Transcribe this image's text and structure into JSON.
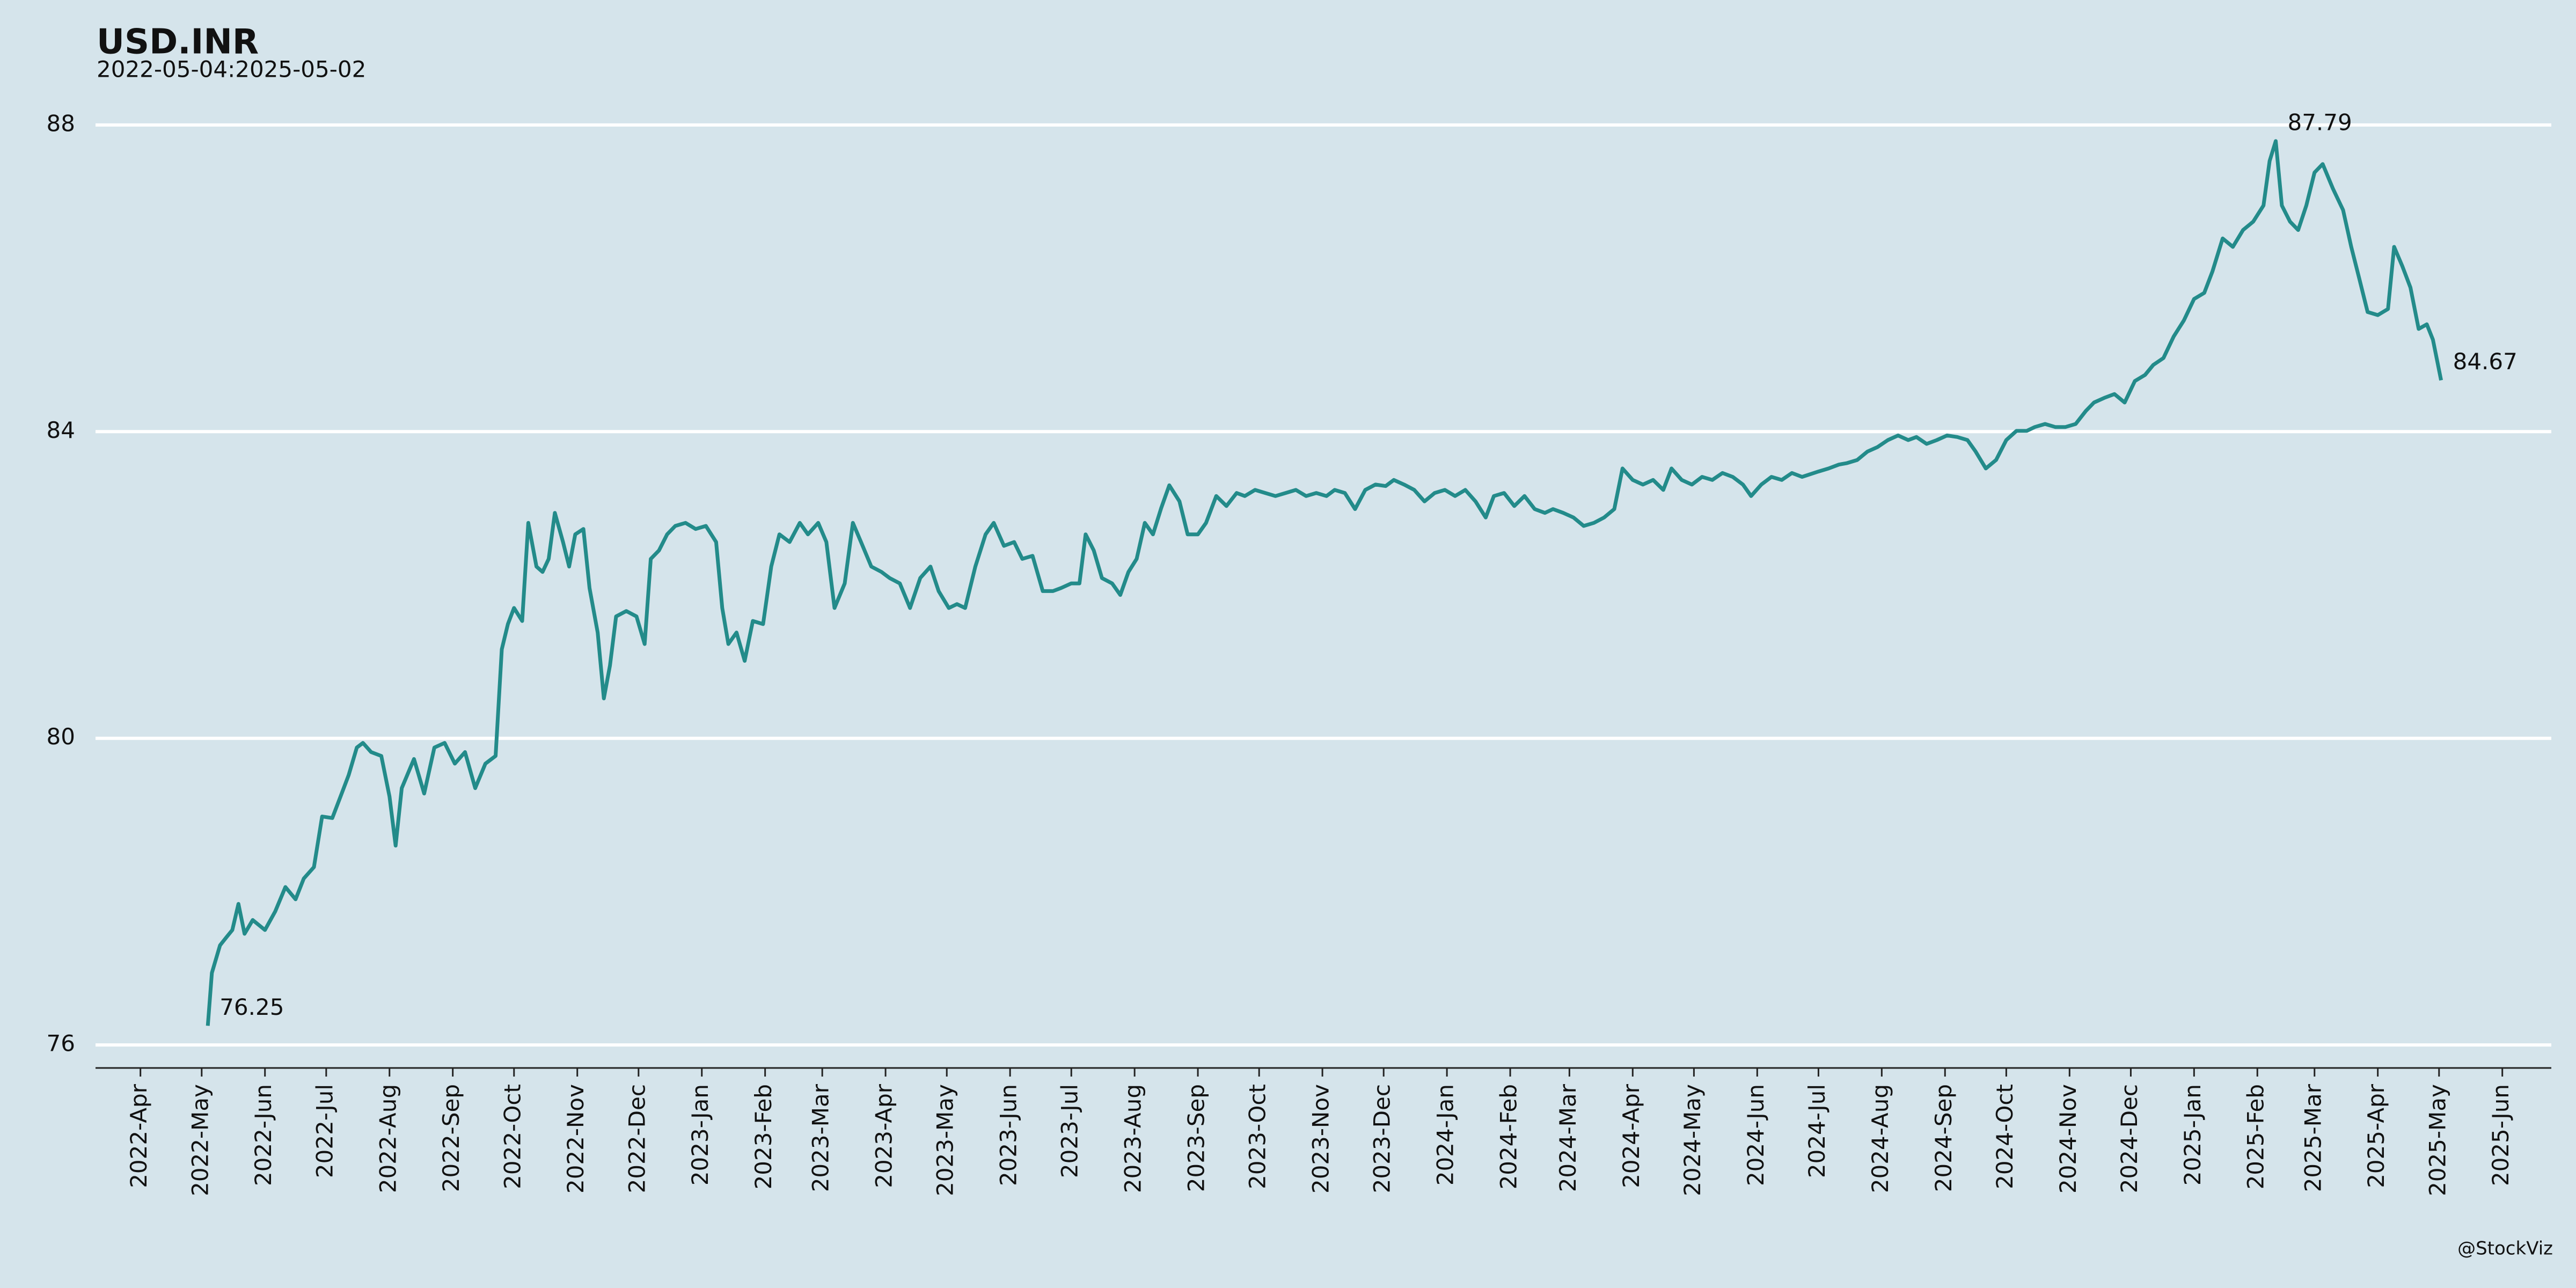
{
  "chart_data": {
    "type": "line",
    "title": "USD.INR",
    "subtitle": "2022-05-04:2025-05-02",
    "caption": "@StockViz",
    "x": [
      "2022-05-04",
      "2022-05-06",
      "2022-05-10",
      "2022-05-13",
      "2022-05-16",
      "2022-05-19",
      "2022-05-22",
      "2022-05-26",
      "2022-06-01",
      "2022-06-06",
      "2022-06-11",
      "2022-06-16",
      "2022-06-20",
      "2022-06-25",
      "2022-06-29",
      "2022-07-04",
      "2022-07-08",
      "2022-07-12",
      "2022-07-16",
      "2022-07-19",
      "2022-07-23",
      "2022-07-28",
      "2022-08-01",
      "2022-08-04",
      "2022-08-07",
      "2022-08-13",
      "2022-08-18",
      "2022-08-23",
      "2022-08-28",
      "2022-09-02",
      "2022-09-07",
      "2022-09-12",
      "2022-09-17",
      "2022-09-22",
      "2022-09-25",
      "2022-09-28",
      "2022-10-01",
      "2022-10-05",
      "2022-10-08",
      "2022-10-12",
      "2022-10-15",
      "2022-10-18",
      "2022-10-21",
      "2022-10-25",
      "2022-10-28",
      "2022-10-31",
      "2022-11-04",
      "2022-11-07",
      "2022-11-11",
      "2022-11-14",
      "2022-11-17",
      "2022-11-20",
      "2022-11-25",
      "2022-11-30",
      "2022-12-04",
      "2022-12-07",
      "2022-12-11",
      "2022-12-15",
      "2022-12-19",
      "2022-12-24",
      "2022-12-29",
      "2023-01-03",
      "2023-01-08",
      "2023-01-11",
      "2023-01-14",
      "2023-01-18",
      "2023-01-22",
      "2023-01-26",
      "2023-01-31",
      "2023-02-04",
      "2023-02-08",
      "2023-02-13",
      "2023-02-18",
      "2023-02-22",
      "2023-02-27",
      "2023-03-03",
      "2023-03-07",
      "2023-03-12",
      "2023-03-16",
      "2023-03-20",
      "2023-03-25",
      "2023-03-30",
      "2023-04-03",
      "2023-04-08",
      "2023-04-13",
      "2023-04-18",
      "2023-04-23",
      "2023-04-27",
      "2023-05-02",
      "2023-05-06",
      "2023-05-10",
      "2023-05-15",
      "2023-05-20",
      "2023-05-24",
      "2023-05-29",
      "2023-06-03",
      "2023-06-07",
      "2023-06-12",
      "2023-06-17",
      "2023-06-22",
      "2023-06-26",
      "2023-07-01",
      "2023-07-05",
      "2023-07-08",
      "2023-07-12",
      "2023-07-16",
      "2023-07-21",
      "2023-07-25",
      "2023-07-29",
      "2023-08-02",
      "2023-08-06",
      "2023-08-10",
      "2023-08-14",
      "2023-08-18",
      "2023-08-23",
      "2023-08-27",
      "2023-09-01",
      "2023-09-05",
      "2023-09-10",
      "2023-09-15",
      "2023-09-20",
      "2023-09-24",
      "2023-09-29",
      "2023-10-04",
      "2023-10-09",
      "2023-10-14",
      "2023-10-19",
      "2023-10-24",
      "2023-10-29",
      "2023-11-03",
      "2023-11-07",
      "2023-11-12",
      "2023-11-17",
      "2023-11-22",
      "2023-11-27",
      "2023-12-02",
      "2023-12-06",
      "2023-12-11",
      "2023-12-16",
      "2023-12-21",
      "2023-12-26",
      "2023-12-31",
      "2024-01-05",
      "2024-01-10",
      "2024-01-15",
      "2024-01-20",
      "2024-01-24",
      "2024-01-29",
      "2024-02-03",
      "2024-02-08",
      "2024-02-13",
      "2024-02-18",
      "2024-02-22",
      "2024-02-27",
      "2024-03-03",
      "2024-03-08",
      "2024-03-13",
      "2024-03-18",
      "2024-03-23",
      "2024-03-27",
      "2024-04-01",
      "2024-04-06",
      "2024-04-11",
      "2024-04-16",
      "2024-04-20",
      "2024-04-25",
      "2024-04-30",
      "2024-05-05",
      "2024-05-10",
      "2024-05-15",
      "2024-05-20",
      "2024-05-25",
      "2024-05-29",
      "2024-06-03",
      "2024-06-08",
      "2024-06-13",
      "2024-06-18",
      "2024-06-23",
      "2024-07-01",
      "2024-07-06",
      "2024-07-11",
      "2024-07-15",
      "2024-07-20",
      "2024-07-25",
      "2024-07-30",
      "2024-08-04",
      "2024-08-09",
      "2024-08-14",
      "2024-08-18",
      "2024-08-23",
      "2024-08-28",
      "2024-09-02",
      "2024-09-07",
      "2024-09-12",
      "2024-09-16",
      "2024-09-21",
      "2024-09-26",
      "2024-10-01",
      "2024-10-06",
      "2024-10-11",
      "2024-10-15",
      "2024-10-20",
      "2024-10-25",
      "2024-10-30",
      "2024-11-04",
      "2024-11-09",
      "2024-11-13",
      "2024-11-18",
      "2024-11-23",
      "2024-11-28",
      "2024-12-03",
      "2024-12-08",
      "2024-12-12",
      "2024-12-17",
      "2024-12-22",
      "2024-12-27",
      "2025-01-01",
      "2025-01-06",
      "2025-01-10",
      "2025-01-15",
      "2025-01-20",
      "2025-01-25",
      "2025-01-30",
      "2025-02-04",
      "2025-02-07",
      "2025-02-10",
      "2025-02-13",
      "2025-02-17",
      "2025-02-21",
      "2025-02-25",
      "2025-03-01",
      "2025-03-05",
      "2025-03-10",
      "2025-03-15",
      "2025-03-19",
      "2025-03-23",
      "2025-03-27",
      "2025-04-01",
      "2025-04-06",
      "2025-04-09",
      "2025-04-13",
      "2025-04-17",
      "2025-04-21",
      "2025-04-25",
      "2025-04-28",
      "2025-05-02"
    ],
    "series": [
      {
        "name": "USD.INR",
        "color": "#238b8a",
        "values": [
          76.25,
          76.94,
          77.3,
          77.4,
          77.5,
          77.84,
          77.45,
          77.63,
          77.5,
          77.74,
          78.06,
          77.9,
          78.17,
          78.32,
          78.98,
          78.96,
          79.24,
          79.52,
          79.88,
          79.94,
          79.82,
          79.77,
          79.24,
          78.6,
          79.35,
          79.73,
          79.28,
          79.88,
          79.94,
          79.67,
          79.82,
          79.35,
          79.67,
          79.77,
          81.16,
          81.49,
          81.7,
          81.53,
          82.81,
          82.24,
          82.17,
          82.34,
          82.94,
          82.56,
          82.24,
          82.66,
          82.73,
          81.96,
          81.38,
          80.52,
          80.95,
          81.59,
          81.66,
          81.59,
          81.23,
          82.34,
          82.45,
          82.66,
          82.77,
          82.81,
          82.73,
          82.77,
          82.56,
          81.7,
          81.23,
          81.38,
          81.01,
          81.53,
          81.49,
          82.24,
          82.66,
          82.56,
          82.81,
          82.66,
          82.81,
          82.56,
          81.7,
          82.02,
          82.81,
          82.56,
          82.24,
          82.17,
          82.09,
          82.02,
          81.7,
          82.09,
          82.24,
          81.92,
          81.7,
          81.75,
          81.7,
          82.24,
          82.66,
          82.81,
          82.51,
          82.56,
          82.34,
          82.38,
          81.92,
          81.92,
          81.96,
          82.02,
          82.02,
          82.66,
          82.45,
          82.09,
          82.02,
          81.87,
          82.17,
          82.34,
          82.81,
          82.66,
          83.0,
          83.3,
          83.09,
          82.66,
          82.66,
          82.81,
          83.16,
          83.03,
          83.2,
          83.16,
          83.24,
          83.2,
          83.16,
          83.2,
          83.24,
          83.16,
          83.2,
          83.16,
          83.24,
          83.2,
          82.99,
          83.24,
          83.31,
          83.29,
          83.37,
          83.31,
          83.24,
          83.09,
          83.2,
          83.24,
          83.16,
          83.24,
          83.09,
          82.88,
          83.16,
          83.2,
          83.03,
          83.16,
          82.99,
          82.94,
          82.99,
          82.94,
          82.88,
          82.77,
          82.81,
          82.88,
          82.99,
          83.52,
          83.37,
          83.31,
          83.37,
          83.24,
          83.52,
          83.37,
          83.31,
          83.41,
          83.37,
          83.46,
          83.41,
          83.31,
          83.16,
          83.31,
          83.41,
          83.37,
          83.46,
          83.41,
          83.48,
          83.52,
          83.57,
          83.59,
          83.63,
          83.74,
          83.8,
          83.89,
          83.95,
          83.89,
          83.93,
          83.84,
          83.89,
          83.95,
          83.93,
          83.89,
          83.74,
          83.52,
          83.63,
          83.89,
          84.01,
          84.01,
          84.06,
          84.1,
          84.06,
          84.06,
          84.1,
          84.27,
          84.38,
          84.44,
          84.49,
          84.38,
          84.66,
          84.74,
          84.87,
          84.96,
          85.24,
          85.45,
          85.73,
          85.81,
          86.09,
          86.52,
          86.41,
          86.63,
          86.74,
          86.95,
          87.53,
          87.79,
          86.95,
          86.74,
          86.63,
          86.95,
          87.38,
          87.49,
          87.17,
          86.89,
          86.41,
          85.99,
          85.56,
          85.52,
          85.6,
          86.41,
          86.16,
          85.88,
          85.34,
          85.4,
          85.2,
          84.67
        ]
      }
    ],
    "annotations": [
      {
        "x": "2022-05-04",
        "y": 76.25
      },
      {
        "x": "2025-02-10",
        "y": 87.79
      },
      {
        "x": "2025-05-02",
        "y": 84.67
      }
    ],
    "xlim": [
      "2022-03-10",
      "2025-06-25"
    ],
    "xticks": [
      {
        "value": "2022-04-01",
        "label": "2022-Apr"
      },
      {
        "value": "2022-05-01",
        "label": "2022-May"
      },
      {
        "value": "2022-06-01",
        "label": "2022-Jun"
      },
      {
        "value": "2022-07-01",
        "label": "2022-Jul"
      },
      {
        "value": "2022-08-01",
        "label": "2022-Aug"
      },
      {
        "value": "2022-09-01",
        "label": "2022-Sep"
      },
      {
        "value": "2022-10-01",
        "label": "2022-Oct"
      },
      {
        "value": "2022-11-01",
        "label": "2022-Nov"
      },
      {
        "value": "2022-12-01",
        "label": "2022-Dec"
      },
      {
        "value": "2023-01-01",
        "label": "2023-Jan"
      },
      {
        "value": "2023-02-01",
        "label": "2023-Feb"
      },
      {
        "value": "2023-03-01",
        "label": "2023-Mar"
      },
      {
        "value": "2023-04-01",
        "label": "2023-Apr"
      },
      {
        "value": "2023-05-01",
        "label": "2023-May"
      },
      {
        "value": "2023-06-01",
        "label": "2023-Jun"
      },
      {
        "value": "2023-07-01",
        "label": "2023-Jul"
      },
      {
        "value": "2023-08-01",
        "label": "2023-Aug"
      },
      {
        "value": "2023-09-01",
        "label": "2023-Sep"
      },
      {
        "value": "2023-10-01",
        "label": "2023-Oct"
      },
      {
        "value": "2023-11-01",
        "label": "2023-Nov"
      },
      {
        "value": "2023-12-01",
        "label": "2023-Dec"
      },
      {
        "value": "2024-01-01",
        "label": "2024-Jan"
      },
      {
        "value": "2024-02-01",
        "label": "2024-Feb"
      },
      {
        "value": "2024-03-01",
        "label": "2024-Mar"
      },
      {
        "value": "2024-04-01",
        "label": "2024-Apr"
      },
      {
        "value": "2024-05-01",
        "label": "2024-May"
      },
      {
        "value": "2024-06-01",
        "label": "2024-Jun"
      },
      {
        "value": "2024-07-01",
        "label": "2024-Jul"
      },
      {
        "value": "2024-08-01",
        "label": "2024-Aug"
      },
      {
        "value": "2024-09-01",
        "label": "2024-Sep"
      },
      {
        "value": "2024-10-01",
        "label": "2024-Oct"
      },
      {
        "value": "2024-11-01",
        "label": "2024-Nov"
      },
      {
        "value": "2024-12-01",
        "label": "2024-Dec"
      },
      {
        "value": "2025-01-01",
        "label": "2025-Jan"
      },
      {
        "value": "2025-02-01",
        "label": "2025-Feb"
      },
      {
        "value": "2025-03-01",
        "label": "2025-Mar"
      },
      {
        "value": "2025-04-01",
        "label": "2025-Apr"
      },
      {
        "value": "2025-05-01",
        "label": "2025-May"
      },
      {
        "value": "2025-06-01",
        "label": "2025-Jun"
      }
    ],
    "ylim": [
      75.7,
      88.37
    ],
    "yticks": [
      76,
      80,
      84,
      88
    ],
    "grid": true
  }
}
